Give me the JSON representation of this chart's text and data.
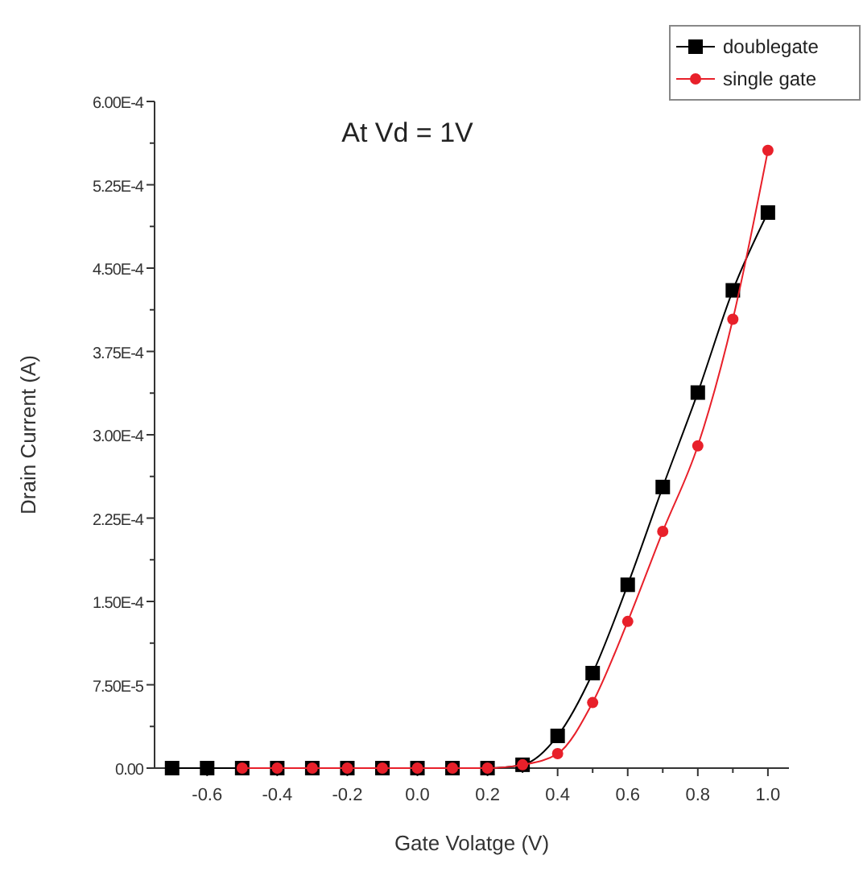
{
  "chart_data": {
    "type": "line",
    "title": "At Vd = 1V",
    "xlabel": "Gate Volatge (V)",
    "ylabel": "Drain Current (A)",
    "xlim": [
      -0.75,
      1.06
    ],
    "xticks": [
      {
        "value": -0.6,
        "label": "-0.6"
      },
      {
        "value": -0.4,
        "label": "-0.4"
      },
      {
        "value": -0.2,
        "label": "-0.2"
      },
      {
        "value": 0,
        "label": "0.0"
      },
      {
        "value": 0.2,
        "label": "0.2"
      },
      {
        "value": 0.4,
        "label": "0.4"
      },
      {
        "value": 0.6,
        "label": "0.6"
      },
      {
        "value": 0.8,
        "label": "0.8"
      },
      {
        "value": 1,
        "label": "1.0"
      }
    ],
    "ylim": [
      0,
      0.0006
    ],
    "yticks": [
      {
        "value": 0,
        "label": "0.00"
      },
      {
        "value": 7.5e-05,
        "label": "7.50E-5"
      },
      {
        "value": 0.00015,
        "label": "1.50E-4"
      },
      {
        "value": 0.000225,
        "label": "2.25E-4"
      },
      {
        "value": 0.0003,
        "label": "3.00E-4"
      },
      {
        "value": 0.000375,
        "label": "3.75E-4"
      },
      {
        "value": 0.00045,
        "label": "4.50E-4"
      },
      {
        "value": 0.000525,
        "label": "5.25E-4"
      },
      {
        "value": 0.0006,
        "label": "6.00E-4"
      }
    ],
    "legend": "top right",
    "series": [
      {
        "name": "doublegate",
        "color": "#000000",
        "marker": "square",
        "x": [
          -0.7,
          -0.6,
          -0.5,
          -0.4,
          -0.3,
          -0.2,
          -0.1,
          0,
          0.1,
          0.2,
          0.3,
          0.4,
          0.5,
          0.6,
          0.7,
          0.8,
          0.9,
          1.0
        ],
        "values": [
          0,
          0,
          0,
          0,
          0,
          0,
          0,
          0,
          0,
          0,
          3e-06,
          2.9e-05,
          8.55e-05,
          0.000165,
          0.000253,
          0.000338,
          0.00043,
          0.0005
        ]
      },
      {
        "name": "single gate",
        "color": "#e8202a",
        "marker": "circle",
        "x": [
          -0.5,
          -0.4,
          -0.3,
          -0.2,
          -0.1,
          0,
          0.1,
          0.2,
          0.3,
          0.4,
          0.5,
          0.6,
          0.7,
          0.8,
          0.9,
          1.0
        ],
        "values": [
          0,
          0,
          0,
          0,
          0,
          0,
          0,
          0,
          3e-06,
          1.3e-05,
          5.9e-05,
          0.000132,
          0.000213,
          0.00029,
          0.000404,
          0.000556
        ]
      }
    ]
  }
}
